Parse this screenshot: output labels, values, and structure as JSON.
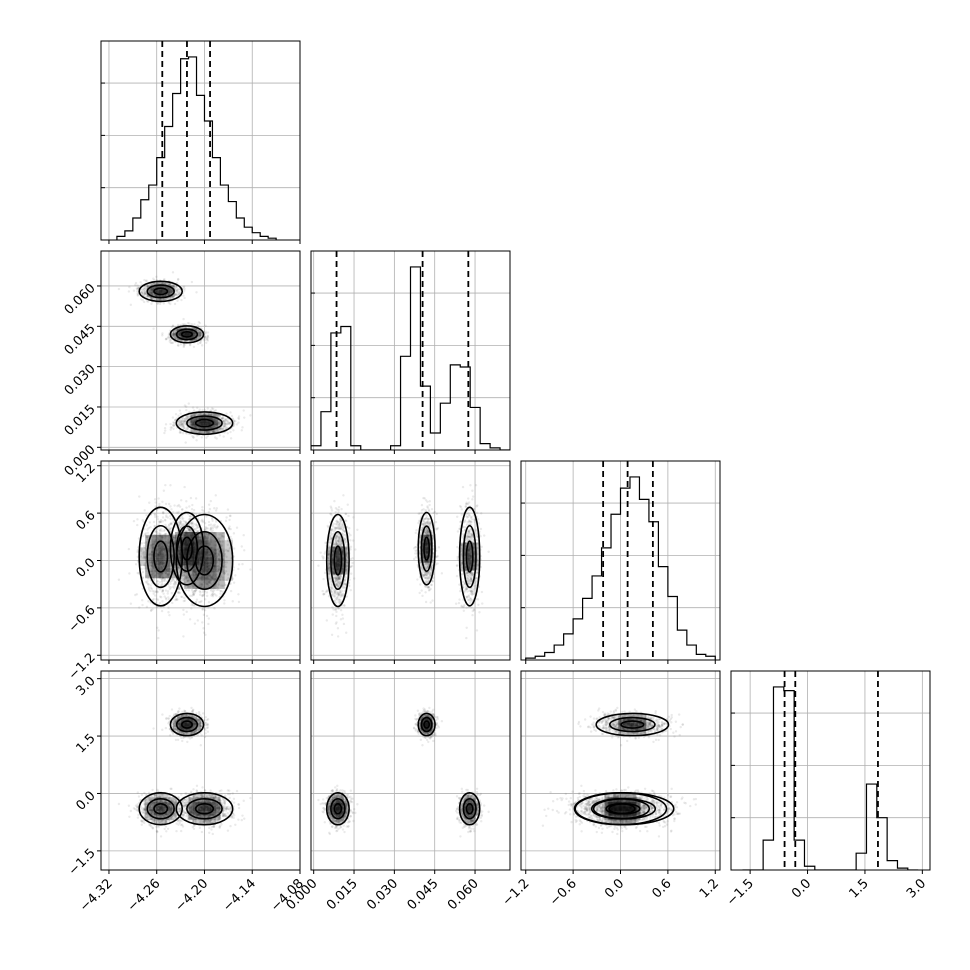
{
  "chart_data": {
    "type": "corner",
    "parameters": [
      {
        "range": [
          -4.33,
          -4.08
        ],
        "ticks": [
          {
            "v": -4.32,
            "label": "−4.32"
          },
          {
            "v": -4.26,
            "label": "−4.26"
          },
          {
            "v": -4.2,
            "label": "−4.20"
          },
          {
            "v": -4.14,
            "label": "−4.14"
          },
          {
            "v": -4.08,
            "label": "−4.08"
          }
        ],
        "quantiles": [
          -4.253,
          -4.222,
          -4.193
        ]
      },
      {
        "range": [
          -0.001,
          0.073
        ],
        "ticks": [
          {
            "v": 0.0,
            "label": "0.000"
          },
          {
            "v": 0.015,
            "label": "0.015"
          },
          {
            "v": 0.03,
            "label": "0.030"
          },
          {
            "v": 0.045,
            "label": "0.045"
          },
          {
            "v": 0.06,
            "label": "0.060"
          }
        ],
        "quantiles": [
          0.0085,
          0.0405,
          0.0575
        ]
      },
      {
        "range": [
          -1.26,
          1.26
        ],
        "ticks": [
          {
            "v": -1.2,
            "label": "−1.2"
          },
          {
            "v": -0.6,
            "label": "−0.6"
          },
          {
            "v": 0.0,
            "label": "0.0"
          },
          {
            "v": 0.6,
            "label": "0.6"
          },
          {
            "v": 1.2,
            "label": "1.2"
          }
        ],
        "quantiles": [
          -0.22,
          0.09,
          0.41
        ]
      },
      {
        "range": [
          -2.0,
          3.2
        ],
        "ticks": [
          {
            "v": -1.5,
            "label": "−1.5"
          },
          {
            "v": 0.0,
            "label": "0.0"
          },
          {
            "v": 1.5,
            "label": "1.5"
          },
          {
            "v": 3.0,
            "label": "3.0"
          }
        ],
        "quantiles": [
          -0.6,
          -0.32,
          1.84
        ]
      }
    ],
    "histograms": [
      {
        "param": 0,
        "edges": [
          -4.31,
          -4.3,
          -4.29,
          -4.28,
          -4.27,
          -4.26,
          -4.25,
          -4.24,
          -4.23,
          -4.22,
          -4.21,
          -4.2,
          -4.19,
          -4.18,
          -4.17,
          -4.16,
          -4.15,
          -4.14,
          -4.13,
          -4.12,
          -4.11
        ],
        "counts": [
          0.02,
          0.05,
          0.12,
          0.22,
          0.3,
          0.45,
          0.62,
          0.8,
          0.99,
          1.0,
          0.79,
          0.65,
          0.45,
          0.3,
          0.21,
          0.12,
          0.07,
          0.04,
          0.02,
          0.01
        ]
      },
      {
        "param": 1,
        "edges": [
          -0.001,
          0.0027,
          0.0064,
          0.0101,
          0.0138,
          0.0175,
          0.0212,
          0.0249,
          0.0286,
          0.0323,
          0.036,
          0.0397,
          0.0434,
          0.0471,
          0.0508,
          0.0545,
          0.0582,
          0.0619,
          0.0656,
          0.0693,
          0.073
        ],
        "counts": [
          0.02,
          0.18,
          0.55,
          0.58,
          0.02,
          0.0,
          0.0,
          0.0,
          0.02,
          0.44,
          0.86,
          0.3,
          0.08,
          0.22,
          0.4,
          0.39,
          0.2,
          0.03,
          0.01,
          0.0
        ]
      },
      {
        "param": 2,
        "edges": [
          -1.2,
          -1.08,
          -0.96,
          -0.84,
          -0.72,
          -0.6,
          -0.48,
          -0.36,
          -0.24,
          -0.12,
          0.0,
          0.12,
          0.24,
          0.36,
          0.48,
          0.6,
          0.72,
          0.84,
          0.96,
          1.08,
          1.2
        ],
        "counts": [
          0.01,
          0.02,
          0.04,
          0.08,
          0.14,
          0.22,
          0.33,
          0.45,
          0.6,
          0.78,
          0.92,
          0.98,
          0.86,
          0.74,
          0.5,
          0.34,
          0.16,
          0.08,
          0.03,
          0.02
        ]
      },
      {
        "param": 3,
        "edges": [
          -1.7,
          -1.43,
          -1.16,
          -0.89,
          -0.62,
          -0.35,
          -0.08,
          0.19,
          0.46,
          0.73,
          1.0,
          1.27,
          1.54,
          1.81,
          2.08,
          2.35,
          2.62,
          2.89
        ],
        "counts": [
          0.0,
          0.0,
          0.16,
          0.98,
          0.96,
          0.16,
          0.02,
          0.0,
          0.0,
          0.0,
          0.0,
          0.09,
          0.46,
          0.28,
          0.05,
          0.01,
          0.0
        ]
      }
    ],
    "modes": [
      {
        "p0": -4.255,
        "p1": 0.058,
        "p2": 0.05,
        "p3": -0.4,
        "sd": [
          0.013,
          0.0018,
          0.3,
          0.2
        ],
        "weight": 0.28
      },
      {
        "p0": -4.222,
        "p1": 0.042,
        "p2": 0.15,
        "p3": 1.8,
        "sd": [
          0.01,
          0.0015,
          0.22,
          0.14
        ],
        "weight": 0.34
      },
      {
        "p0": -4.2,
        "p1": 0.009,
        "p2": 0.0,
        "p3": -0.4,
        "sd": [
          0.017,
          0.002,
          0.28,
          0.2
        ],
        "weight": 0.38
      }
    ],
    "grid": true
  }
}
